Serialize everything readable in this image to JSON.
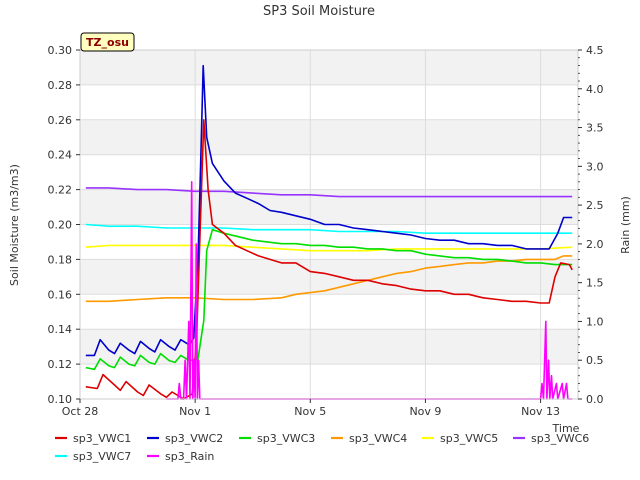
{
  "chart_data": {
    "type": "line",
    "title": "SP3 Soil Moisture",
    "xlabel": "Time",
    "ylabel": "Soil Moisture (m3/m3)",
    "y2label": "Rain (mm)",
    "badge": "TZ_osu",
    "xlim": [
      0,
      17.3
    ],
    "ylim": [
      0.1,
      0.3
    ],
    "y2lim": [
      0.0,
      4.5
    ],
    "x_ticks": [
      {
        "v": 0,
        "label": "Oct 28"
      },
      {
        "v": 4,
        "label": "Nov 1"
      },
      {
        "v": 8,
        "label": "Nov 5"
      },
      {
        "v": 12,
        "label": "Nov 9"
      },
      {
        "v": 16,
        "label": "Nov 13"
      }
    ],
    "y_ticks": [
      {
        "v": 0.1,
        "label": "0.10"
      },
      {
        "v": 0.12,
        "label": "0.12"
      },
      {
        "v": 0.14,
        "label": "0.14"
      },
      {
        "v": 0.16,
        "label": "0.16"
      },
      {
        "v": 0.18,
        "label": "0.18"
      },
      {
        "v": 0.2,
        "label": "0.20"
      },
      {
        "v": 0.22,
        "label": "0.22"
      },
      {
        "v": 0.24,
        "label": "0.24"
      },
      {
        "v": 0.26,
        "label": "0.26"
      },
      {
        "v": 0.28,
        "label": "0.28"
      },
      {
        "v": 0.3,
        "label": "0.30"
      }
    ],
    "y2_ticks": [
      {
        "v": 0.0,
        "label": "0.0"
      },
      {
        "v": 0.5,
        "label": "0.5"
      },
      {
        "v": 1.0,
        "label": "1.0"
      },
      {
        "v": 1.5,
        "label": "1.5"
      },
      {
        "v": 2.0,
        "label": "2.0"
      },
      {
        "v": 2.5,
        "label": "2.5"
      },
      {
        "v": 3.0,
        "label": "3.0"
      },
      {
        "v": 3.5,
        "label": "3.5"
      },
      {
        "v": 4.0,
        "label": "4.0"
      },
      {
        "v": 4.5,
        "label": "4.5"
      }
    ],
    "grid": true,
    "legend_position": "bottom",
    "series": [
      {
        "name": "sp3_VWC1",
        "color": "#dd0000",
        "axis": "left",
        "points": [
          [
            0.2,
            0.107
          ],
          [
            0.6,
            0.106
          ],
          [
            0.8,
            0.114
          ],
          [
            1.2,
            0.108
          ],
          [
            1.4,
            0.105
          ],
          [
            1.6,
            0.11
          ],
          [
            2.0,
            0.104
          ],
          [
            2.2,
            0.102
          ],
          [
            2.4,
            0.108
          ],
          [
            2.8,
            0.103
          ],
          [
            3.0,
            0.101
          ],
          [
            3.2,
            0.104
          ],
          [
            3.6,
            0.1
          ],
          [
            3.9,
            0.103
          ],
          [
            4.05,
            0.135
          ],
          [
            4.2,
            0.21
          ],
          [
            4.3,
            0.26
          ],
          [
            4.45,
            0.22
          ],
          [
            4.6,
            0.2
          ],
          [
            5.0,
            0.195
          ],
          [
            5.4,
            0.188
          ],
          [
            5.8,
            0.185
          ],
          [
            6.2,
            0.182
          ],
          [
            6.6,
            0.18
          ],
          [
            7.0,
            0.178
          ],
          [
            7.5,
            0.178
          ],
          [
            8.0,
            0.173
          ],
          [
            8.5,
            0.172
          ],
          [
            9.0,
            0.17
          ],
          [
            9.5,
            0.168
          ],
          [
            10.0,
            0.168
          ],
          [
            10.5,
            0.166
          ],
          [
            11.0,
            0.165
          ],
          [
            11.5,
            0.163
          ],
          [
            12.0,
            0.162
          ],
          [
            12.5,
            0.162
          ],
          [
            13.0,
            0.16
          ],
          [
            13.5,
            0.16
          ],
          [
            14.0,
            0.158
          ],
          [
            14.5,
            0.157
          ],
          [
            15.0,
            0.156
          ],
          [
            15.5,
            0.156
          ],
          [
            16.0,
            0.155
          ],
          [
            16.3,
            0.155
          ],
          [
            16.5,
            0.17
          ],
          [
            16.7,
            0.178
          ],
          [
            17.0,
            0.177
          ],
          [
            17.1,
            0.174
          ]
        ]
      },
      {
        "name": "sp3_VWC2",
        "color": "#0000cc",
        "axis": "left",
        "points": [
          [
            0.2,
            0.125
          ],
          [
            0.5,
            0.125
          ],
          [
            0.7,
            0.134
          ],
          [
            1.0,
            0.128
          ],
          [
            1.2,
            0.126
          ],
          [
            1.4,
            0.132
          ],
          [
            1.7,
            0.128
          ],
          [
            1.9,
            0.126
          ],
          [
            2.1,
            0.133
          ],
          [
            2.4,
            0.129
          ],
          [
            2.6,
            0.127
          ],
          [
            2.8,
            0.134
          ],
          [
            3.1,
            0.13
          ],
          [
            3.3,
            0.128
          ],
          [
            3.5,
            0.134
          ],
          [
            3.8,
            0.131
          ],
          [
            3.95,
            0.135
          ],
          [
            4.1,
            0.18
          ],
          [
            4.2,
            0.24
          ],
          [
            4.28,
            0.291
          ],
          [
            4.4,
            0.25
          ],
          [
            4.6,
            0.235
          ],
          [
            5.0,
            0.225
          ],
          [
            5.4,
            0.218
          ],
          [
            5.8,
            0.215
          ],
          [
            6.2,
            0.212
          ],
          [
            6.6,
            0.208
          ],
          [
            7.0,
            0.207
          ],
          [
            7.5,
            0.205
          ],
          [
            8.0,
            0.203
          ],
          [
            8.5,
            0.2
          ],
          [
            9.0,
            0.2
          ],
          [
            9.5,
            0.198
          ],
          [
            10.0,
            0.197
          ],
          [
            10.5,
            0.196
          ],
          [
            11.0,
            0.195
          ],
          [
            11.5,
            0.194
          ],
          [
            12.0,
            0.192
          ],
          [
            12.5,
            0.191
          ],
          [
            13.0,
            0.191
          ],
          [
            13.5,
            0.189
          ],
          [
            14.0,
            0.189
          ],
          [
            14.5,
            0.188
          ],
          [
            15.0,
            0.188
          ],
          [
            15.5,
            0.186
          ],
          [
            16.0,
            0.186
          ],
          [
            16.3,
            0.186
          ],
          [
            16.6,
            0.195
          ],
          [
            16.8,
            0.204
          ],
          [
            17.1,
            0.204
          ]
        ]
      },
      {
        "name": "sp3_VWC3",
        "color": "#00dd00",
        "axis": "left",
        "points": [
          [
            0.2,
            0.118
          ],
          [
            0.5,
            0.117
          ],
          [
            0.7,
            0.123
          ],
          [
            1.0,
            0.119
          ],
          [
            1.2,
            0.118
          ],
          [
            1.4,
            0.124
          ],
          [
            1.7,
            0.12
          ],
          [
            1.9,
            0.119
          ],
          [
            2.1,
            0.125
          ],
          [
            2.4,
            0.121
          ],
          [
            2.6,
            0.12
          ],
          [
            2.8,
            0.126
          ],
          [
            3.1,
            0.122
          ],
          [
            3.3,
            0.121
          ],
          [
            3.5,
            0.125
          ],
          [
            3.8,
            0.122
          ],
          [
            4.1,
            0.123
          ],
          [
            4.3,
            0.145
          ],
          [
            4.4,
            0.185
          ],
          [
            4.6,
            0.197
          ],
          [
            5.0,
            0.195
          ],
          [
            5.5,
            0.193
          ],
          [
            6.0,
            0.191
          ],
          [
            6.5,
            0.19
          ],
          [
            7.0,
            0.189
          ],
          [
            7.5,
            0.189
          ],
          [
            8.0,
            0.188
          ],
          [
            8.5,
            0.188
          ],
          [
            9.0,
            0.187
          ],
          [
            9.5,
            0.187
          ],
          [
            10.0,
            0.186
          ],
          [
            10.5,
            0.186
          ],
          [
            11.0,
            0.185
          ],
          [
            11.5,
            0.185
          ],
          [
            12.0,
            0.183
          ],
          [
            12.5,
            0.182
          ],
          [
            13.0,
            0.181
          ],
          [
            13.5,
            0.181
          ],
          [
            14.0,
            0.18
          ],
          [
            14.5,
            0.18
          ],
          [
            15.0,
            0.179
          ],
          [
            15.5,
            0.178
          ],
          [
            16.0,
            0.178
          ],
          [
            16.5,
            0.177
          ],
          [
            17.1,
            0.177
          ]
        ]
      },
      {
        "name": "sp3_VWC4",
        "color": "#ff9900",
        "axis": "left",
        "points": [
          [
            0.2,
            0.156
          ],
          [
            1.0,
            0.156
          ],
          [
            2.0,
            0.157
          ],
          [
            3.0,
            0.158
          ],
          [
            4.0,
            0.158
          ],
          [
            5.0,
            0.157
          ],
          [
            6.0,
            0.157
          ],
          [
            7.0,
            0.158
          ],
          [
            7.5,
            0.16
          ],
          [
            8.0,
            0.161
          ],
          [
            8.5,
            0.162
          ],
          [
            9.0,
            0.164
          ],
          [
            9.5,
            0.166
          ],
          [
            10.0,
            0.168
          ],
          [
            10.5,
            0.17
          ],
          [
            11.0,
            0.172
          ],
          [
            11.5,
            0.173
          ],
          [
            12.0,
            0.175
          ],
          [
            12.5,
            0.176
          ],
          [
            13.0,
            0.177
          ],
          [
            13.5,
            0.178
          ],
          [
            14.0,
            0.178
          ],
          [
            14.5,
            0.179
          ],
          [
            15.0,
            0.179
          ],
          [
            15.5,
            0.18
          ],
          [
            16.0,
            0.18
          ],
          [
            16.5,
            0.18
          ],
          [
            16.8,
            0.182
          ],
          [
            17.1,
            0.182
          ]
        ]
      },
      {
        "name": "sp3_VWC5",
        "color": "#ffff00",
        "axis": "left",
        "points": [
          [
            0.2,
            0.187
          ],
          [
            1.0,
            0.188
          ],
          [
            2.0,
            0.188
          ],
          [
            3.0,
            0.188
          ],
          [
            4.0,
            0.188
          ],
          [
            5.0,
            0.188
          ],
          [
            6.0,
            0.187
          ],
          [
            7.0,
            0.186
          ],
          [
            8.0,
            0.185
          ],
          [
            9.0,
            0.185
          ],
          [
            10.0,
            0.185
          ],
          [
            11.0,
            0.186
          ],
          [
            12.0,
            0.186
          ],
          [
            13.0,
            0.186
          ],
          [
            14.0,
            0.186
          ],
          [
            15.0,
            0.186
          ],
          [
            16.0,
            0.186
          ],
          [
            17.1,
            0.187
          ]
        ]
      },
      {
        "name": "sp3_VWC6",
        "color": "#9933ff",
        "axis": "left",
        "points": [
          [
            0.2,
            0.221
          ],
          [
            1.0,
            0.221
          ],
          [
            2.0,
            0.22
          ],
          [
            3.0,
            0.22
          ],
          [
            4.0,
            0.219
          ],
          [
            5.0,
            0.219
          ],
          [
            6.0,
            0.218
          ],
          [
            7.0,
            0.217
          ],
          [
            8.0,
            0.217
          ],
          [
            9.0,
            0.216
          ],
          [
            10.0,
            0.216
          ],
          [
            11.0,
            0.216
          ],
          [
            12.0,
            0.216
          ],
          [
            13.0,
            0.216
          ],
          [
            14.0,
            0.216
          ],
          [
            15.0,
            0.216
          ],
          [
            16.0,
            0.216
          ],
          [
            17.1,
            0.216
          ]
        ]
      },
      {
        "name": "sp3_VWC7",
        "color": "#00ffff",
        "axis": "left",
        "points": [
          [
            0.2,
            0.2
          ],
          [
            1.0,
            0.199
          ],
          [
            2.0,
            0.199
          ],
          [
            3.0,
            0.198
          ],
          [
            4.0,
            0.198
          ],
          [
            5.0,
            0.198
          ],
          [
            6.0,
            0.197
          ],
          [
            7.0,
            0.197
          ],
          [
            8.0,
            0.197
          ],
          [
            9.0,
            0.196
          ],
          [
            10.0,
            0.196
          ],
          [
            11.0,
            0.196
          ],
          [
            12.0,
            0.195
          ],
          [
            13.0,
            0.195
          ],
          [
            14.0,
            0.195
          ],
          [
            15.0,
            0.195
          ],
          [
            16.0,
            0.195
          ],
          [
            17.1,
            0.195
          ]
        ]
      },
      {
        "name": "sp3_Rain",
        "color": "#ff00ff",
        "axis": "right",
        "points": [
          [
            3.0,
            0.0
          ],
          [
            3.4,
            0.0
          ],
          [
            3.45,
            0.2
          ],
          [
            3.5,
            0.0
          ],
          [
            3.6,
            0.0
          ],
          [
            3.65,
            0.5
          ],
          [
            3.7,
            0.0
          ],
          [
            3.78,
            1.0
          ],
          [
            3.82,
            0.0
          ],
          [
            3.88,
            2.8
          ],
          [
            3.92,
            0.0
          ],
          [
            3.96,
            0.5
          ],
          [
            4.0,
            0.0
          ],
          [
            4.04,
            2.0
          ],
          [
            4.08,
            0.0
          ],
          [
            4.12,
            0.5
          ],
          [
            4.16,
            0.0
          ],
          [
            4.3,
            0.0
          ],
          [
            16.0,
            0.0
          ],
          [
            16.05,
            0.2
          ],
          [
            16.1,
            0.0
          ],
          [
            16.18,
            1.0
          ],
          [
            16.22,
            0.0
          ],
          [
            16.28,
            0.5
          ],
          [
            16.32,
            0.0
          ],
          [
            16.38,
            0.3
          ],
          [
            16.42,
            0.0
          ],
          [
            16.55,
            0.2
          ],
          [
            16.6,
            0.0
          ],
          [
            16.75,
            0.2
          ],
          [
            16.8,
            0.0
          ],
          [
            16.9,
            0.2
          ],
          [
            16.95,
            0.0
          ],
          [
            17.1,
            0.0
          ]
        ]
      }
    ]
  }
}
